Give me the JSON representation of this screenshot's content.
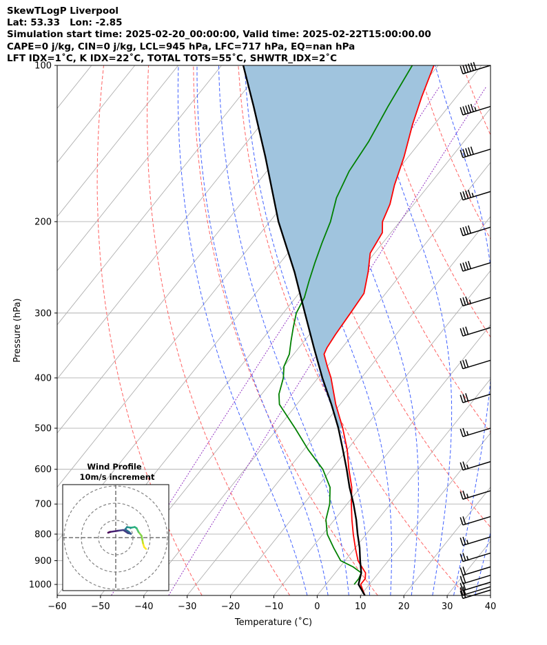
{
  "header": {
    "line1": "SkewTLogP Liverpool",
    "line2": "Lat: 53.33   Lon: -2.85",
    "line3": "Simulation start time: 2025-02-20_00:00:00, Valid time: 2025-02-22T15:00:00.00",
    "line4": "CAPE=0 j/kg, CIN=0 j/kg, LCL=945 hPa, LFC=717 hPa, EQ=nan hPa",
    "line5": "LFT IDX=1$^\\circ$C, K IDX=22$^\\circ$C, TOTAL TOTS=55$^\\circ$C, SHWTR_IDX=2$^\\circ$C"
  },
  "header_display": {
    "line5": "LFT IDX=1˚C, K IDX=22˚C, TOTAL TOTS=55˚C, SHWTR_IDX=2˚C"
  },
  "colors": {
    "temperature": "#ff0000",
    "dewpoint": "#008000",
    "parcel": "#000000",
    "cape_fill": "#a0c4de",
    "dry_adiabat": "#ff6060",
    "moist_adiabat": "#4060ff",
    "mixing_ratio": "#9030c0",
    "isotherm": "#b0b0b0",
    "isobar": "#b0b0b0"
  },
  "chart_data": {
    "type": "line",
    "xlabel": "Temperature ($^\\circ$C)",
    "xlabel_display": "Temperature (˚C)",
    "ylabel": "Pressure (hPa)",
    "x_ticks": [
      -60,
      -50,
      -40,
      -30,
      -20,
      -10,
      0,
      10,
      20,
      30,
      40
    ],
    "y_ticks": [
      100,
      200,
      300,
      400,
      500,
      600,
      700,
      800,
      900,
      1000
    ],
    "xlim": [
      -60,
      40
    ],
    "ylim": [
      1050,
      100
    ],
    "y_scale": "log",
    "skew": true,
    "grid": true,
    "temperature_profile": [
      [
        1050,
        11
      ],
      [
        1000,
        8
      ],
      [
        975,
        8
      ],
      [
        950,
        7
      ],
      [
        925,
        5
      ],
      [
        900,
        3
      ],
      [
        850,
        0
      ],
      [
        800,
        -3
      ],
      [
        750,
        -6
      ],
      [
        700,
        -9
      ],
      [
        650,
        -12
      ],
      [
        600,
        -16
      ],
      [
        550,
        -20
      ],
      [
        500,
        -25
      ],
      [
        450,
        -31
      ],
      [
        400,
        -37
      ],
      [
        380,
        -40
      ],
      [
        360,
        -43
      ],
      [
        350,
        -43.5
      ],
      [
        330,
        -44
      ],
      [
        300,
        -44.5
      ],
      [
        275,
        -45
      ],
      [
        250,
        -48
      ],
      [
        230,
        -51
      ],
      [
        210,
        -52
      ],
      [
        200,
        -54
      ],
      [
        185,
        -55.5
      ],
      [
        170,
        -58
      ],
      [
        150,
        -61
      ],
      [
        130,
        -65
      ],
      [
        115,
        -68
      ],
      [
        100,
        -71
      ]
    ],
    "dewpoint_profile": [
      [
        1000,
        6.5
      ],
      [
        975,
        6.5
      ],
      [
        950,
        6
      ],
      [
        925,
        3
      ],
      [
        900,
        -1
      ],
      [
        850,
        -5
      ],
      [
        800,
        -9
      ],
      [
        750,
        -12
      ],
      [
        700,
        -14
      ],
      [
        650,
        -17
      ],
      [
        600,
        -22
      ],
      [
        550,
        -29
      ],
      [
        500,
        -36
      ],
      [
        450,
        -44
      ],
      [
        430,
        -46
      ],
      [
        400,
        -48
      ],
      [
        380,
        -50
      ],
      [
        360,
        -51
      ],
      [
        340,
        -53
      ],
      [
        320,
        -55
      ],
      [
        300,
        -57
      ],
      [
        280,
        -58
      ],
      [
        260,
        -60
      ],
      [
        240,
        -62
      ],
      [
        220,
        -64
      ],
      [
        200,
        -66
      ],
      [
        180,
        -69
      ],
      [
        160,
        -71
      ],
      [
        140,
        -72
      ],
      [
        120,
        -74
      ],
      [
        100,
        -76
      ]
    ],
    "parcel_profile": [
      [
        1050,
        11
      ],
      [
        1000,
        7.5
      ],
      [
        950,
        6
      ],
      [
        900,
        3.5
      ],
      [
        850,
        1
      ],
      [
        800,
        -2
      ],
      [
        750,
        -5
      ],
      [
        700,
        -8.5
      ],
      [
        650,
        -12.5
      ],
      [
        600,
        -16.5
      ],
      [
        550,
        -21
      ],
      [
        500,
        -26
      ],
      [
        450,
        -32
      ],
      [
        400,
        -39
      ],
      [
        350,
        -46.5
      ],
      [
        300,
        -55
      ],
      [
        250,
        -65
      ],
      [
        200,
        -78
      ],
      [
        150,
        -93
      ],
      [
        120,
        -105
      ],
      [
        100,
        -115
      ]
    ],
    "wind_barbs": [
      {
        "p": 100,
        "spd_kt": 60
      },
      {
        "p": 120,
        "spd_kt": 55
      },
      {
        "p": 145,
        "spd_kt": 50
      },
      {
        "p": 175,
        "spd_kt": 45
      },
      {
        "p": 205,
        "spd_kt": 40
      },
      {
        "p": 240,
        "spd_kt": 40
      },
      {
        "p": 280,
        "spd_kt": 35
      },
      {
        "p": 320,
        "spd_kt": 30
      },
      {
        "p": 370,
        "spd_kt": 30
      },
      {
        "p": 430,
        "spd_kt": 30
      },
      {
        "p": 500,
        "spd_kt": 25
      },
      {
        "p": 580,
        "spd_kt": 25
      },
      {
        "p": 660,
        "spd_kt": 25
      },
      {
        "p": 740,
        "spd_kt": 20
      },
      {
        "p": 810,
        "spd_kt": 25
      },
      {
        "p": 870,
        "spd_kt": 25
      },
      {
        "p": 925,
        "spd_kt": 20
      },
      {
        "p": 960,
        "spd_kt": 20
      },
      {
        "p": 990,
        "spd_kt": 20
      },
      {
        "p": 1010,
        "spd_kt": 20
      },
      {
        "p": 1025,
        "spd_kt": 20
      }
    ],
    "hodograph": {
      "title": "Wind Profile",
      "subtitle": "10m/s increment",
      "ring_step_ms": 10,
      "rings": 3,
      "trace_uv": [
        [
          8,
          -3
        ],
        [
          7.5,
          -2.5
        ],
        [
          7.2,
          -1.5
        ],
        [
          7,
          -0.5
        ],
        [
          6.8,
          0.5
        ],
        [
          6,
          1.5
        ],
        [
          5.5,
          2.5
        ],
        [
          5,
          2.8
        ],
        [
          4,
          2.6
        ],
        [
          3,
          2.8
        ],
        [
          2.5,
          2.2
        ],
        [
          3.5,
          1.5
        ],
        [
          4,
          1.0
        ],
        [
          3.2,
          1.2
        ],
        [
          2,
          2
        ],
        [
          0.5,
          1.8
        ],
        [
          -1.5,
          1.5
        ],
        [
          -2,
          1.3
        ]
      ]
    }
  }
}
